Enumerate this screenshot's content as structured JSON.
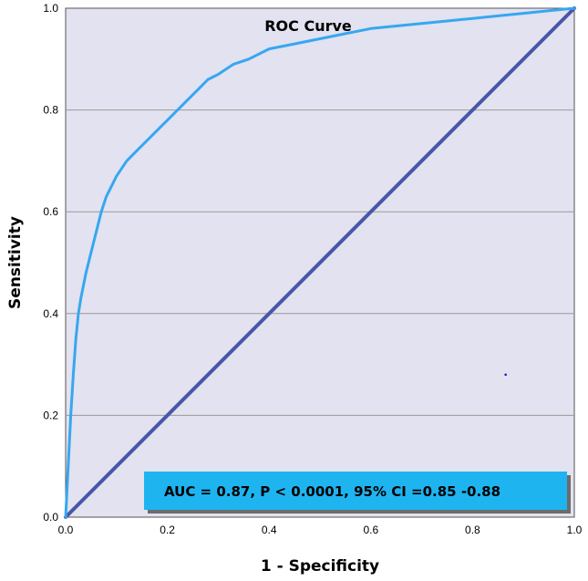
{
  "chart_data": {
    "type": "line",
    "title": "ROC Curve",
    "xlabel": "1 - Specificity",
    "ylabel": "Sensitivity",
    "xlim": [
      0.0,
      1.0
    ],
    "ylim": [
      0.0,
      1.0
    ],
    "xticks": [
      "0.0",
      "0.2",
      "0.4",
      "0.6",
      "0.8",
      "1.0"
    ],
    "yticks": [
      "0.0",
      "0.2",
      "0.4",
      "0.6",
      "0.8",
      "1.0"
    ],
    "grid": "horizontal",
    "series": [
      {
        "color": "#37a7f0",
        "x": [
          0.0,
          0.005,
          0.01,
          0.015,
          0.02,
          0.025,
          0.03,
          0.04,
          0.05,
          0.06,
          0.07,
          0.08,
          0.09,
          0.1,
          0.12,
          0.14,
          0.16,
          0.18,
          0.2,
          0.22,
          0.24,
          0.26,
          0.28,
          0.3,
          0.33,
          0.36,
          0.4,
          0.45,
          0.5,
          0.55,
          0.6,
          0.65,
          0.7,
          0.75,
          0.8,
          0.85,
          0.9,
          0.95,
          1.0
        ],
        "y": [
          0.0,
          0.1,
          0.2,
          0.28,
          0.35,
          0.4,
          0.43,
          0.48,
          0.52,
          0.56,
          0.6,
          0.63,
          0.65,
          0.67,
          0.7,
          0.72,
          0.74,
          0.76,
          0.78,
          0.8,
          0.82,
          0.84,
          0.86,
          0.87,
          0.89,
          0.9,
          0.92,
          0.93,
          0.94,
          0.95,
          0.96,
          0.965,
          0.97,
          0.975,
          0.98,
          0.985,
          0.99,
          0.995,
          1.0
        ]
      },
      {
        "color": "#4a56a6",
        "x": [
          0.0,
          1.0
        ],
        "y": [
          0.0,
          1.0
        ]
      }
    ],
    "stray_point": {
      "x": 0.865,
      "y": 0.28,
      "color": "#1a1acc"
    },
    "annotation": {
      "text": "AUC = 0.87, P < 0.0001, 95% CI =0.85 -0.88",
      "background": "#1eb4ef"
    },
    "plot_background": "#e2e2f0"
  }
}
